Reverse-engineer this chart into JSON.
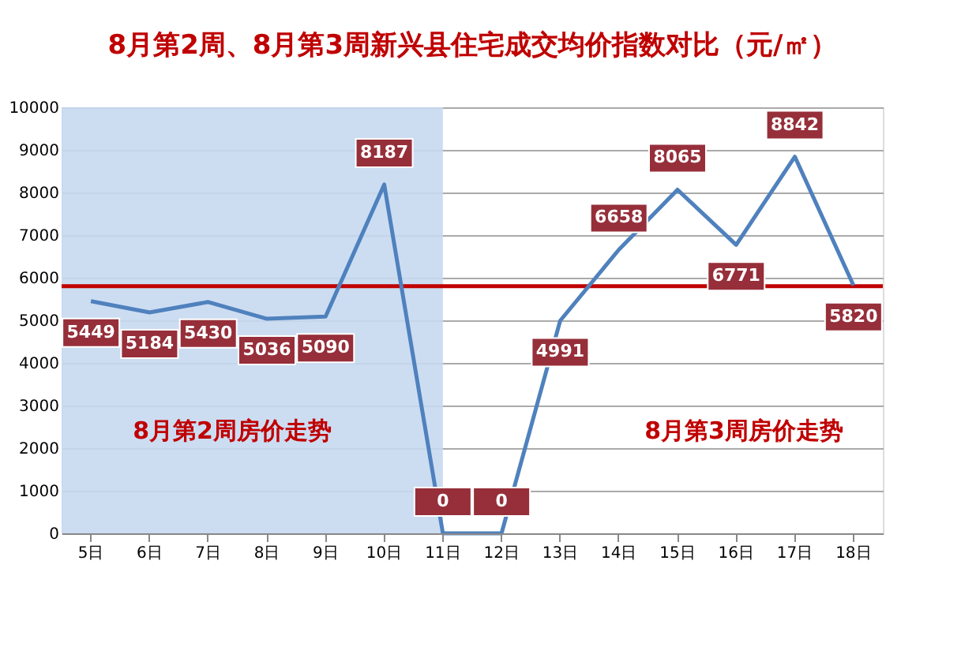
{
  "chart_data": {
    "type": "line",
    "title": "8月第2周、8月第3周新兴县住宅成交均价指数对比（元/㎡）",
    "categories": [
      "5日",
      "6日",
      "7日",
      "8日",
      "9日",
      "10日",
      "11日",
      "12日",
      "13日",
      "14日",
      "15日",
      "16日",
      "17日",
      "18日"
    ],
    "series": [
      {
        "color": "#4f81bd",
        "values": [
          5449,
          5184,
          5430,
          5036,
          5090,
          8187,
          0,
          0,
          4991,
          6658,
          8065,
          6771,
          8842,
          5820
        ]
      }
    ],
    "ylim": [
      0,
      10000
    ],
    "yticks": [
      0,
      1000,
      2000,
      3000,
      4000,
      5000,
      6000,
      7000,
      8000,
      9000,
      10000
    ],
    "grid": "y",
    "marker": "none",
    "line_style": "solid",
    "data_labels": true,
    "ref_lines": [
      {
        "axis": "y",
        "value": 5800,
        "color": "#c00000"
      }
    ],
    "bands": [
      {
        "axis": "x",
        "from": "5日",
        "to": "11日",
        "color": "#c6d9f1"
      }
    ],
    "annotations": [
      "8月第2周房价走势",
      "8月第3周房价走势"
    ]
  }
}
